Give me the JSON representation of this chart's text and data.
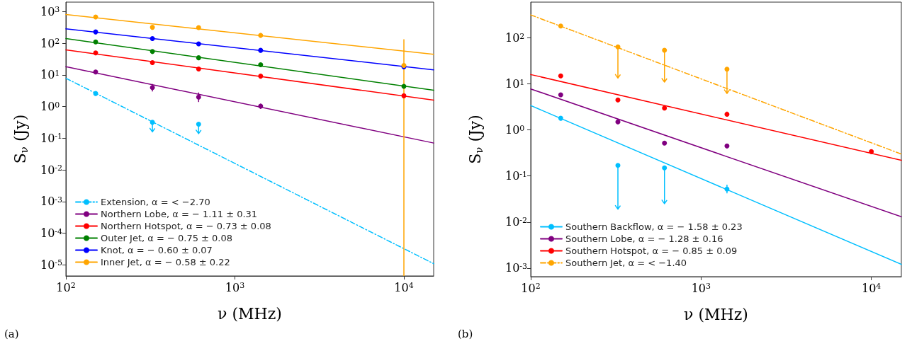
{
  "chart_data": [
    {
      "type": "scatter",
      "xlabel": "ν (MHz)",
      "ylabel": "S$_{ν}$ (Jy)",
      "log": "xy",
      "grid": false,
      "legend": "bottom left",
      "marker": "circle",
      "xlim": [
        100,
        15000
      ],
      "xticks": [
        {
          "value": 100,
          "label": "10$^{2}$"
        },
        {
          "value": 1000,
          "label": "10$^{3}$"
        },
        {
          "value": 10000,
          "label": "10$^{4}$"
        }
      ],
      "ylim": [
        4.5e-06,
        2000
      ],
      "yticks": [
        {
          "value": 1e-05,
          "label": "10$^{-5}$"
        },
        {
          "value": 0.0001,
          "label": "10$^{-4}$"
        },
        {
          "value": 0.001,
          "label": "10$^{-3}$"
        },
        {
          "value": 0.01,
          "label": "10$^{-2}$"
        },
        {
          "value": 0.1,
          "label": "10$^{-1}$"
        },
        {
          "value": 1,
          "label": "10$^{0}$"
        },
        {
          "value": 10,
          "label": "10$^{1}$"
        },
        {
          "value": 100,
          "label": "10$^{2}$"
        },
        {
          "value": 1000,
          "label": "10$^{3}$"
        }
      ],
      "annotations": [
        "(a)"
      ],
      "series": [
        {
          "type": "line",
          "name": "Extension, α = < −2.70",
          "color": "#00bfff",
          "line_style": "dashed",
          "marker": "none",
          "x": [
            100,
            15000
          ],
          "values": [
            7.9,
            1.1e-05
          ]
        },
        {
          "type": "line",
          "name": "Northern Lobe, α = − 1.11 ± 0.31",
          "color": "#800080",
          "line_style": "solid",
          "marker": "none",
          "x": [
            100,
            15000
          ],
          "values": [
            18.2,
            0.071
          ]
        },
        {
          "type": "line",
          "name": "Northern Hotspot, α = − 0.73 ± 0.08",
          "color": "#ff0000",
          "line_style": "solid",
          "marker": "none",
          "x": [
            100,
            15000
          ],
          "values": [
            62,
            1.6
          ]
        },
        {
          "type": "line",
          "name": "Outer Jet, α = − 0.75 ± 0.08",
          "color": "#008000",
          "line_style": "solid",
          "marker": "none",
          "x": [
            100,
            15000
          ],
          "values": [
            141,
            3.3
          ]
        },
        {
          "type": "line",
          "name": "Knot, α = − 0.60 ± 0.07",
          "color": "#0000ff",
          "line_style": "solid",
          "marker": "none",
          "x": [
            100,
            15000
          ],
          "values": [
            288,
            14.5
          ]
        },
        {
          "type": "line",
          "name": "Inner Jet, α = − 0.58 ± 0.22",
          "color": "#ffa500",
          "line_style": "solid",
          "marker": "none",
          "x": [
            100,
            15000
          ],
          "values": [
            810,
            45
          ]
        },
        {
          "color": "#00bfff",
          "x": [
            150,
            325,
            610
          ],
          "values": [
            2.6,
            0.32,
            0.28
          ],
          "errors": [
            null,
            [
              0.16,
              0.32
            ],
            [
              0.14,
              0.28
            ]
          ]
        },
        {
          "color": "#800080",
          "x": [
            150,
            325,
            610,
            1420
          ],
          "values": [
            12.4,
            4.0,
            2.0,
            1.04
          ],
          "errors": [
            [
              10.5,
              14.5
            ],
            [
              3.0,
              5.2
            ],
            [
              1.4,
              2.8
            ],
            [
              0.85,
              1.25
            ]
          ]
        },
        {
          "color": "#ff0000",
          "x": [
            150,
            325,
            610,
            1420,
            10000
          ],
          "values": [
            50,
            24.5,
            15.4,
            9.2,
            2.2
          ]
        },
        {
          "color": "#008000",
          "x": [
            150,
            325,
            610,
            1420,
            10000
          ],
          "values": [
            111,
            55,
            35,
            21,
            4.4
          ]
        },
        {
          "color": "#0000ff",
          "x": [
            150,
            325,
            610,
            1420,
            10000
          ],
          "values": [
            229,
            141,
            96,
            60,
            18
          ]
        },
        {
          "color": "#ffa500",
          "x": [
            150,
            325,
            610,
            1420,
            10000
          ],
          "values": [
            680,
            320,
            315,
            178,
            20
          ],
          "errors": [
            null,
            null,
            null,
            [
              150,
              210
            ],
            [
              4.5e-06,
              135
            ]
          ]
        }
      ]
    },
    {
      "type": "scatter",
      "xlabel": "ν (MHz)",
      "ylabel": "S$_{ν}$ (Jy)",
      "log": "xy",
      "grid": false,
      "legend": "bottom left",
      "marker": "circle",
      "xlim": [
        100,
        15000
      ],
      "xticks": [
        {
          "value": 100,
          "label": "10$^{2}$"
        },
        {
          "value": 1000,
          "label": "10$^{3}$"
        },
        {
          "value": 10000,
          "label": "10$^{4}$"
        }
      ],
      "ylim": [
        0.00065,
        600
      ],
      "yticks": [
        {
          "value": 0.001,
          "label": "10$^{-3}$"
        },
        {
          "value": 0.01,
          "label": "10$^{-2}$"
        },
        {
          "value": 0.1,
          "label": "10$^{-1}$"
        },
        {
          "value": 1,
          "label": "10$^{0}$"
        },
        {
          "value": 10,
          "label": "10$^{1}$"
        },
        {
          "value": 100,
          "label": "10$^{2}$"
        }
      ],
      "annotations": [
        "(b)"
      ],
      "series": [
        {
          "type": "line",
          "name": "Southern Backflow, α = − 1.58 ± 0.23",
          "color": "#00bfff",
          "line_style": "solid",
          "marker": "none",
          "x": [
            100,
            15000
          ],
          "values": [
            3.4,
            0.0012
          ]
        },
        {
          "type": "line",
          "name": "Southern Lobe, α = − 1.28 ± 0.16",
          "color": "#800080",
          "line_style": "solid",
          "marker": "none",
          "x": [
            100,
            15000
          ],
          "values": [
            7.8,
            0.013
          ]
        },
        {
          "type": "line",
          "name": "Southern Hotspot, α = − 0.85 ± 0.09",
          "color": "#ff0000",
          "line_style": "solid",
          "marker": "none",
          "x": [
            100,
            15000
          ],
          "values": [
            16,
            0.22
          ]
        },
        {
          "type": "line",
          "name": "Southern Jet, α = < −1.40",
          "color": "#ffa500",
          "line_style": "dashed",
          "marker": "none",
          "x": [
            100,
            15000
          ],
          "values": [
            316,
            0.3
          ]
        },
        {
          "color": "#00bfff",
          "x": [
            150,
            325,
            610,
            1420
          ],
          "values": [
            1.8,
            0.17,
            0.15,
            0.052
          ],
          "errors": [
            null,
            [
              0.019,
              0.17
            ],
            [
              0.025,
              0.15
            ],
            [
              0.042,
              0.065
            ]
          ]
        },
        {
          "color": "#800080",
          "x": [
            150,
            325,
            610,
            1420
          ],
          "values": [
            5.8,
            1.5,
            0.52,
            0.45
          ],
          "errors": [
            null,
            [
              1.35,
              1.7
            ],
            null,
            [
              0.4,
              0.5
            ]
          ]
        },
        {
          "color": "#ff0000",
          "x": [
            150,
            325,
            610,
            1420,
            10000
          ],
          "values": [
            15,
            4.5,
            3.0,
            2.2,
            0.34
          ],
          "errors": [
            null,
            null,
            null,
            [
              2.0,
              2.5
            ],
            [
              0.3,
              0.38
            ]
          ]
        },
        {
          "color": "#ffa500",
          "x": [
            150,
            325,
            610,
            1420
          ],
          "values": [
            182,
            64,
            54,
            21
          ],
          "errors": [
            null,
            [
              13.4,
              64
            ],
            [
              11,
              54
            ],
            [
              6.2,
              21
            ]
          ]
        }
      ]
    }
  ]
}
